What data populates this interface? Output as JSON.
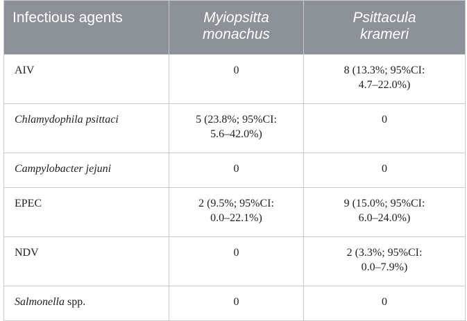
{
  "header": {
    "col0": "Infectious agents",
    "col1_line1": "Myiopsitta",
    "col1_line2": "monachus",
    "col2_line1": "Psittacula",
    "col2_line2": "krameri"
  },
  "rows": [
    {
      "agent": "AIV",
      "italic": false,
      "m1": "0",
      "m2": "",
      "p1": "8 (13.3%; 95%CI:",
      "p2": "4.7–22.0%)"
    },
    {
      "agent": "Chlamydophila psittaci",
      "italic": true,
      "m1": "5 (23.8%; 95%CI:",
      "m2": "5.6–42.0%)",
      "p1": "0",
      "p2": ""
    },
    {
      "agent": "Campylobacter jejuni",
      "italic": true,
      "m1": "0",
      "m2": "",
      "p1": "0",
      "p2": ""
    },
    {
      "agent": "EPEC",
      "italic": false,
      "m1": "2 (9.5%; 95%CI:",
      "m2": "0.0–22.1%)",
      "p1": "9 (15.0%; 95%CI:",
      "p2": "6.0–24.0%)"
    },
    {
      "agent": "NDV",
      "italic": false,
      "m1": "0",
      "m2": "",
      "p1": "2 (3.3%; 95%CI:",
      "p2": "0.0–7.9%)"
    },
    {
      "agent_italic": "Salmonella",
      "agent_rest": " spp.",
      "m1": "0",
      "m2": "",
      "p1": "0",
      "p2": ""
    }
  ],
  "colors": {
    "header_bg": "#8c9197",
    "header_text": "#ffffff",
    "border": "#c9c9c9"
  }
}
